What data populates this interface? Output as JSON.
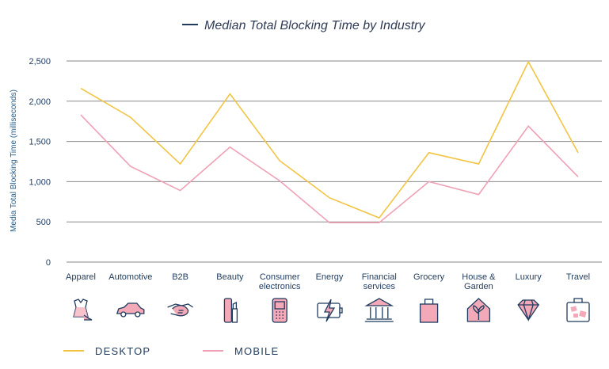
{
  "chart_data": {
    "type": "line",
    "title": "Median Total Blocking Time by Industry",
    "ylabel": "Media Total Blocking Time (milliseconds)",
    "xlabel": "",
    "ylim": [
      0,
      2500
    ],
    "yticks": [
      0,
      500,
      1000,
      1500,
      2000,
      2500
    ],
    "ytick_labels": [
      "0",
      "500",
      "1,000",
      "1,500",
      "2,000",
      "2,500"
    ],
    "categories": [
      [
        "Apparel"
      ],
      [
        "Automotive"
      ],
      [
        "B2B"
      ],
      [
        "Beauty"
      ],
      [
        "Consumer",
        "electronics"
      ],
      [
        "Energy"
      ],
      [
        "Financial",
        "services"
      ],
      [
        "Grocery"
      ],
      [
        "House &",
        "Garden"
      ],
      [
        "Luxury"
      ],
      [
        "Travel"
      ]
    ],
    "icons": [
      "dress-icon",
      "car-icon",
      "handshake-icon",
      "lipstick-icon",
      "phone-icon",
      "battery-icon",
      "bank-icon",
      "shopping-bag-icon",
      "house-plant-icon",
      "diamond-icon",
      "suitcase-icon"
    ],
    "grid": true,
    "legend_position": "bottom-left",
    "series": [
      {
        "name": "DESKTOP",
        "color": "#f2c443",
        "values": [
          2160,
          1800,
          1220,
          2090,
          1260,
          800,
          550,
          1360,
          1220,
          2490,
          1360
        ]
      },
      {
        "name": "MOBILE",
        "color": "#f0a0b5",
        "values": [
          1830,
          1190,
          890,
          1430,
          1010,
          490,
          490,
          1000,
          840,
          1690,
          1060
        ]
      }
    ],
    "title_line_color": "#1f3b5e"
  }
}
